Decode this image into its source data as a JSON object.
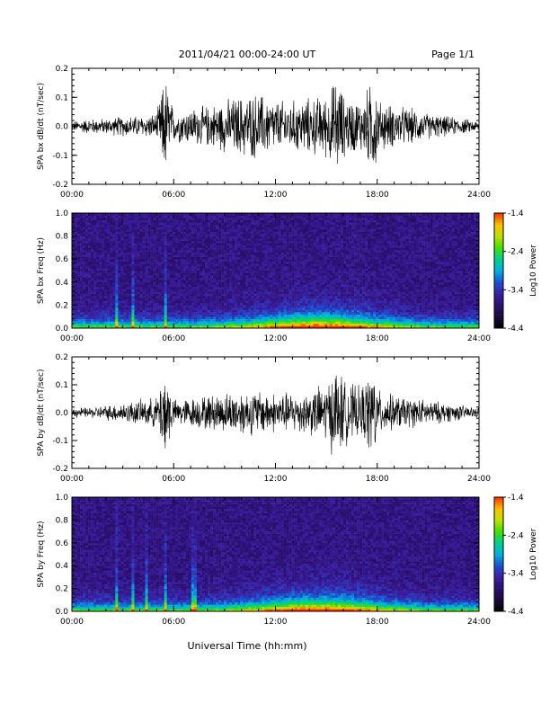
{
  "header": {
    "title": "2011/04/21  00:00-24:00 UT",
    "page": "Page 1/1"
  },
  "footer": {
    "xlabel": "Universal Time (hh:mm)"
  },
  "colors": {
    "trace": "#000000",
    "background": "#ffffff",
    "colormap": [
      "#000000",
      "#1a0a3a",
      "#2b0f6e",
      "#3b1fa0",
      "#1f4fd0",
      "#00b0e0",
      "#00d090",
      "#40e000",
      "#c0e000",
      "#ffc000",
      "#ff3000"
    ]
  },
  "chart_data": [
    {
      "type": "line",
      "ylabel": "SPA bx dB/dt (nT/sec)",
      "x_ticks": [
        "00:00",
        "06:00",
        "12:00",
        "18:00",
        "24:00"
      ],
      "xlim": [
        0,
        24
      ],
      "ylim": [
        -0.2,
        0.2
      ],
      "y_ticks": [
        "0.2",
        "0.1",
        "0.0",
        "-0.1",
        "-0.2"
      ],
      "y_tick_values": [
        0.2,
        0.1,
        0.0,
        -0.1,
        -0.2
      ],
      "series": [
        {
          "x": [
            0,
            1,
            2,
            3,
            4,
            5,
            5.5,
            6,
            7,
            8,
            9,
            10,
            11,
            12,
            13,
            14,
            15,
            15.7,
            16,
            17,
            17.9,
            18,
            19,
            20,
            21,
            22,
            23,
            24
          ],
          "amplitude": [
            0.02,
            0.03,
            0.03,
            0.04,
            0.04,
            0.05,
            0.2,
            0.06,
            0.07,
            0.08,
            0.1,
            0.12,
            0.13,
            0.1,
            0.1,
            0.11,
            0.12,
            0.2,
            0.12,
            0.1,
            0.2,
            0.1,
            0.08,
            0.07,
            0.05,
            0.04,
            0.03,
            0.02
          ]
        }
      ]
    },
    {
      "type": "heatmap",
      "ylabel": "SPA bx Freq (Hz)",
      "x_ticks": [
        "00:00",
        "06:00",
        "12:00",
        "18:00",
        "24:00"
      ],
      "xlim": [
        0,
        24
      ],
      "ylim": [
        0.0,
        1.0
      ],
      "y_ticks": [
        "1.0",
        "0.8",
        "0.6",
        "0.4",
        "0.2",
        "0.0"
      ],
      "y_tick_values": [
        1.0,
        0.8,
        0.6,
        0.4,
        0.2,
        0.0
      ],
      "colorbar": {
        "label": "Log10 Power",
        "ticks": [
          "-1.4",
          "-2.4",
          "-3.4",
          "-4.4"
        ],
        "tick_values": [
          -1.4,
          -2.4,
          -3.4,
          -4.4
        ],
        "range": [
          -4.4,
          -1.4
        ]
      },
      "vertical_streaks_hours": [
        2.6,
        3.6,
        5.5
      ]
    },
    {
      "type": "line",
      "ylabel": "SPA by dB/dt (nT/sec)",
      "x_ticks": [
        "00:00",
        "06:00",
        "12:00",
        "18:00",
        "24:00"
      ],
      "xlim": [
        0,
        24
      ],
      "ylim": [
        -0.2,
        0.2
      ],
      "y_ticks": [
        "0.2",
        "0.1",
        "0.0",
        "-0.1",
        "-0.2"
      ],
      "y_tick_values": [
        0.2,
        0.1,
        0.0,
        -0.1,
        -0.2
      ],
      "series": [
        {
          "x": [
            0,
            1,
            2,
            3,
            4,
            5,
            5.5,
            6,
            7,
            8,
            9,
            10,
            11,
            12,
            13,
            14,
            15,
            15.7,
            16,
            17,
            17.9,
            18,
            19,
            20,
            21,
            22,
            23,
            24
          ],
          "amplitude": [
            0.02,
            0.02,
            0.03,
            0.04,
            0.05,
            0.06,
            0.2,
            0.05,
            0.06,
            0.07,
            0.08,
            0.09,
            0.09,
            0.08,
            0.08,
            0.09,
            0.12,
            0.2,
            0.13,
            0.1,
            0.2,
            0.09,
            0.07,
            0.06,
            0.05,
            0.04,
            0.03,
            0.02
          ]
        }
      ]
    },
    {
      "type": "heatmap",
      "ylabel": "SPA by Freq (Hz)",
      "x_ticks": [
        "00:00",
        "06:00",
        "12:00",
        "18:00",
        "24:00"
      ],
      "xlim": [
        0,
        24
      ],
      "ylim": [
        0.0,
        1.0
      ],
      "y_ticks": [
        "1.0",
        "0.8",
        "0.6",
        "0.4",
        "0.2",
        "0.0"
      ],
      "y_tick_values": [
        1.0,
        0.8,
        0.6,
        0.4,
        0.2,
        0.0
      ],
      "colorbar": {
        "label": "Log10 Power",
        "ticks": [
          "-1.4",
          "-2.4",
          "-3.4",
          "-4.4"
        ],
        "tick_values": [
          -1.4,
          -2.4,
          -3.4,
          -4.4
        ],
        "range": [
          -4.4,
          -1.4
        ]
      },
      "vertical_streaks_hours": [
        2.6,
        3.6,
        4.4,
        5.5,
        7.2
      ]
    }
  ]
}
